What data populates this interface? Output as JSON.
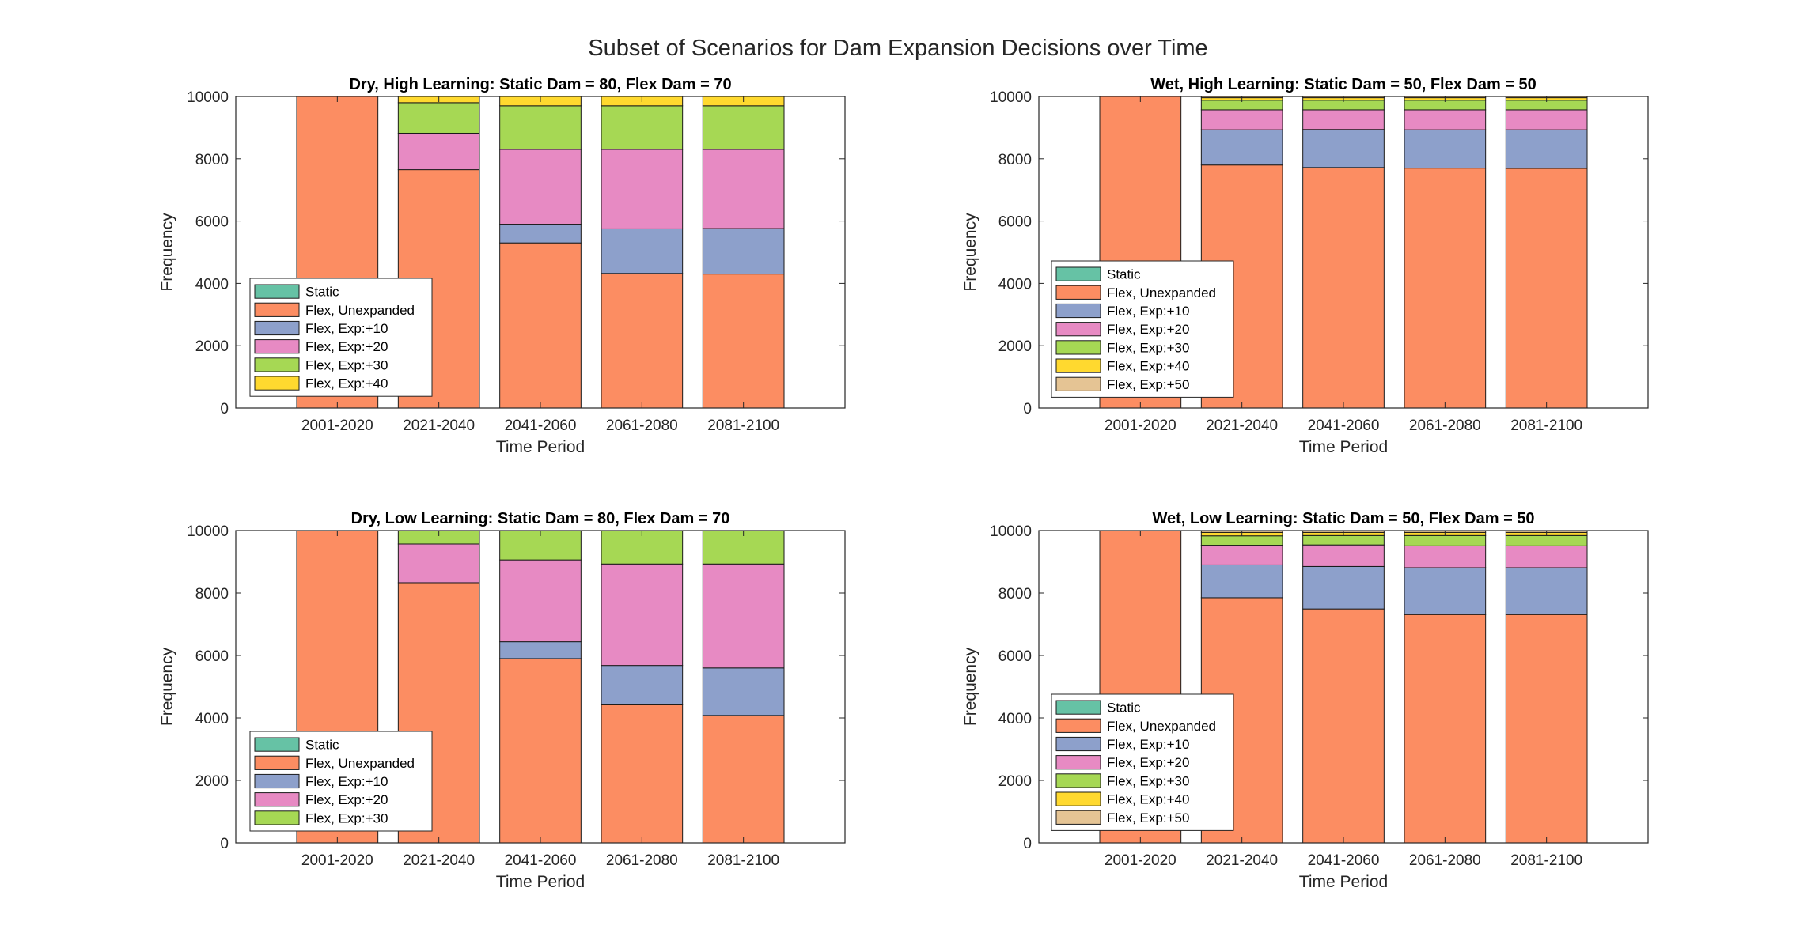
{
  "figure_title": "Subset of Scenarios for Dam Expansion Decisions over Time",
  "colors": {
    "Static": "#66c2a5",
    "Flex, Unexpanded": "#fc8d62",
    "Flex, Exp:+10": "#8da0cb",
    "Flex, Exp:+20": "#e78ac3",
    "Flex, Exp:+30": "#a6d854",
    "Flex, Exp:+40": "#ffd92f",
    "Flex, Exp:+50": "#e5c494"
  },
  "chart_data": [
    {
      "type": "bar",
      "stacked": true,
      "title": "Dry, High Learning: Static Dam = 80, Flex Dam = 70",
      "xlabel": "Time Period",
      "ylabel": "Frequency",
      "ylim": [
        0,
        10000
      ],
      "yticks": [
        0,
        2000,
        4000,
        6000,
        8000,
        10000
      ],
      "categories": [
        "2001-2020",
        "2021-2040",
        "2041-2060",
        "2061-2080",
        "2081-2100"
      ],
      "legend_location": "bottom-left",
      "series": [
        {
          "name": "Static",
          "values": [
            0,
            0,
            0,
            0,
            0
          ]
        },
        {
          "name": "Flex, Unexpanded",
          "values": [
            10000,
            7650,
            5300,
            4320,
            4300
          ]
        },
        {
          "name": "Flex, Exp:+10",
          "values": [
            0,
            0,
            600,
            1430,
            1460
          ]
        },
        {
          "name": "Flex, Exp:+20",
          "values": [
            0,
            1170,
            2400,
            2550,
            2540
          ]
        },
        {
          "name": "Flex, Exp:+30",
          "values": [
            0,
            980,
            1400,
            1400,
            1400
          ]
        },
        {
          "name": "Flex, Exp:+40",
          "values": [
            0,
            200,
            300,
            300,
            300
          ]
        }
      ]
    },
    {
      "type": "bar",
      "stacked": true,
      "title": "Wet, High Learning: Static Dam = 50, Flex Dam = 50",
      "xlabel": "Time Period",
      "ylabel": "Frequency",
      "ylim": [
        0,
        10000
      ],
      "yticks": [
        0,
        2000,
        4000,
        6000,
        8000,
        10000
      ],
      "categories": [
        "2001-2020",
        "2021-2040",
        "2041-2060",
        "2061-2080",
        "2081-2100"
      ],
      "legend_location": "bottom-left",
      "series": [
        {
          "name": "Static",
          "values": [
            0,
            0,
            0,
            0,
            0
          ]
        },
        {
          "name": "Flex, Unexpanded",
          "values": [
            10000,
            7800,
            7720,
            7700,
            7690
          ]
        },
        {
          "name": "Flex, Exp:+10",
          "values": [
            0,
            1130,
            1220,
            1230,
            1240
          ]
        },
        {
          "name": "Flex, Exp:+20",
          "values": [
            0,
            640,
            630,
            640,
            640
          ]
        },
        {
          "name": "Flex, Exp:+30",
          "values": [
            0,
            310,
            310,
            310,
            310
          ]
        },
        {
          "name": "Flex, Exp:+40",
          "values": [
            0,
            80,
            80,
            80,
            80
          ]
        },
        {
          "name": "Flex, Exp:+50",
          "values": [
            0,
            40,
            40,
            40,
            40
          ]
        }
      ]
    },
    {
      "type": "bar",
      "stacked": true,
      "title": "Dry, Low Learning: Static Dam = 80, Flex Dam = 70",
      "xlabel": "Time Period",
      "ylabel": "Frequency",
      "ylim": [
        0,
        10000
      ],
      "yticks": [
        0,
        2000,
        4000,
        6000,
        8000,
        10000
      ],
      "categories": [
        "2001-2020",
        "2021-2040",
        "2041-2060",
        "2061-2080",
        "2081-2100"
      ],
      "legend_location": "bottom-left",
      "series": [
        {
          "name": "Static",
          "values": [
            0,
            0,
            0,
            0,
            0
          ]
        },
        {
          "name": "Flex, Unexpanded",
          "values": [
            10000,
            8330,
            5900,
            4420,
            4080
          ]
        },
        {
          "name": "Flex, Exp:+10",
          "values": [
            0,
            0,
            540,
            1260,
            1520
          ]
        },
        {
          "name": "Flex, Exp:+20",
          "values": [
            0,
            1240,
            2620,
            3250,
            3330
          ]
        },
        {
          "name": "Flex, Exp:+30",
          "values": [
            0,
            430,
            940,
            1070,
            1070
          ]
        }
      ]
    },
    {
      "type": "bar",
      "stacked": true,
      "title": "Wet, Low Learning: Static Dam = 50, Flex Dam = 50",
      "xlabel": "Time Period",
      "ylabel": "Frequency",
      "ylim": [
        0,
        10000
      ],
      "yticks": [
        0,
        2000,
        4000,
        6000,
        8000,
        10000
      ],
      "categories": [
        "2001-2020",
        "2021-2040",
        "2041-2060",
        "2061-2080",
        "2081-2100"
      ],
      "legend_location": "bottom-left",
      "series": [
        {
          "name": "Static",
          "values": [
            0,
            0,
            0,
            0,
            0
          ]
        },
        {
          "name": "Flex, Unexpanded",
          "values": [
            10000,
            7850,
            7490,
            7310,
            7310
          ]
        },
        {
          "name": "Flex, Exp:+10",
          "values": [
            0,
            1050,
            1360,
            1500,
            1500
          ]
        },
        {
          "name": "Flex, Exp:+20",
          "values": [
            0,
            630,
            690,
            700,
            700
          ]
        },
        {
          "name": "Flex, Exp:+30",
          "values": [
            0,
            300,
            300,
            330,
            330
          ]
        },
        {
          "name": "Flex, Exp:+40",
          "values": [
            0,
            110,
            100,
            100,
            100
          ]
        },
        {
          "name": "Flex, Exp:+50",
          "values": [
            0,
            60,
            60,
            60,
            60
          ]
        }
      ]
    }
  ]
}
